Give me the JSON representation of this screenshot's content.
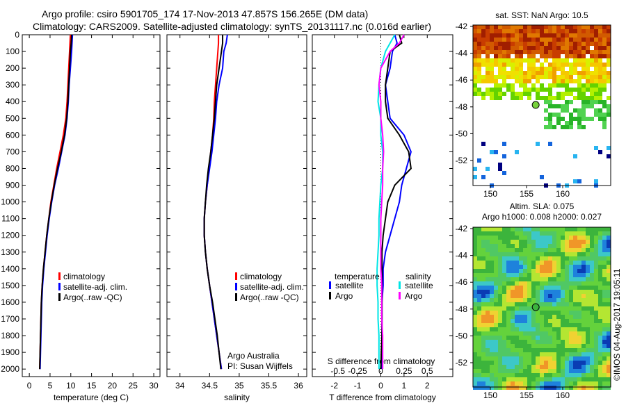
{
  "title": {
    "line1": "Argo profile: csiro 5901705_174 17-Nov-2013 47.857S 156.265E (DM data)",
    "line2": "Climatology: CARS2009. Satellite-adjusted climatology: synTS_20131117.nc (0.016d earlier)"
  },
  "chart_data": [
    {
      "type": "line",
      "xlabel": "temperature (deg C)",
      "xticks": [
        0,
        5,
        10,
        15,
        20,
        25,
        30
      ],
      "xlim": [
        -1.7,
        31.5
      ],
      "ylim": [
        2045,
        0
      ],
      "yticks": [
        0,
        100,
        200,
        300,
        400,
        500,
        600,
        700,
        800,
        900,
        1000,
        1100,
        1200,
        1300,
        1400,
        1500,
        1600,
        1700,
        1800,
        1900,
        2000
      ],
      "legend": [
        "climatology",
        "satellite-adj. clim.",
        "Argo(..raw -QC)"
      ],
      "depth": [
        0,
        50,
        100,
        200,
        300,
        400,
        500,
        600,
        700,
        800,
        900,
        1000,
        1100,
        1200,
        1300,
        1400,
        1500,
        1600,
        1700,
        1800,
        1900,
        2000
      ],
      "series": [
        {
          "name": "climatology",
          "color": "#ff0000",
          "values": [
            9.9,
            9.8,
            9.7,
            9.5,
            9.3,
            9.1,
            8.8,
            8.2,
            7.4,
            6.6,
            5.9,
            5.2,
            4.7,
            4.2,
            3.8,
            3.4,
            3.1,
            2.9,
            2.8,
            2.7,
            2.6,
            2.5
          ]
        },
        {
          "name": "satellite-adj. clim.",
          "color": "#0000ff",
          "values": [
            10.4,
            10.3,
            10.2,
            9.9,
            9.6,
            9.4,
            9.1,
            8.6,
            7.8,
            7.0,
            6.1,
            5.4,
            4.8,
            4.3,
            3.9,
            3.5,
            3.2,
            3.0,
            2.9,
            2.8,
            2.7,
            2.6
          ]
        },
        {
          "name": "Argo(..raw -QC)",
          "color": "#000000",
          "values": [
            10.2,
            10.1,
            9.9,
            9.7,
            9.5,
            9.3,
            9.0,
            8.5,
            7.7,
            6.8,
            6.0,
            5.3,
            4.7,
            4.2,
            3.8,
            3.4,
            3.1,
            2.9,
            2.8,
            2.7,
            2.6,
            2.5
          ]
        }
      ]
    },
    {
      "type": "line",
      "xlabel": "salinity",
      "xticks": [
        34,
        34.5,
        35,
        35.5,
        36
      ],
      "xlim": [
        33.78,
        36.14
      ],
      "ylim": [
        2045,
        0
      ],
      "legend": [
        "climatology",
        "satellite-adj. clim.",
        "Argo(..raw -QC)"
      ],
      "annotation": [
        "Argo Australia",
        "PI: Susan Wijffels"
      ],
      "depth": [
        0,
        50,
        100,
        200,
        300,
        400,
        500,
        600,
        700,
        800,
        900,
        1000,
        1100,
        1200,
        1300,
        1400,
        1500,
        1600,
        1700,
        1800,
        1900,
        2000
      ],
      "series": [
        {
          "name": "climatology",
          "color": "#ff0000",
          "values": [
            34.65,
            34.65,
            34.64,
            34.62,
            34.6,
            34.58,
            34.57,
            34.55,
            34.52,
            34.49,
            34.46,
            34.43,
            34.41,
            34.41,
            34.43,
            34.46,
            34.5,
            34.54,
            34.58,
            34.62,
            34.66,
            34.7
          ]
        },
        {
          "name": "satellite-adj. clim.",
          "color": "#0000ff",
          "values": [
            34.8,
            34.78,
            34.74,
            34.72,
            34.66,
            34.62,
            34.6,
            34.57,
            34.54,
            34.5,
            34.46,
            34.43,
            34.41,
            34.41,
            34.43,
            34.46,
            34.5,
            34.54,
            34.58,
            34.62,
            34.66,
            34.7
          ]
        },
        {
          "name": "Argo(..raw -QC)",
          "color": "#000000",
          "values": [
            34.72,
            34.72,
            34.7,
            34.66,
            34.62,
            34.6,
            34.58,
            34.55,
            34.52,
            34.48,
            34.45,
            34.43,
            34.41,
            34.41,
            34.43,
            34.46,
            34.5,
            34.55,
            34.59,
            34.63,
            34.66,
            34.69
          ]
        }
      ]
    },
    {
      "type": "line",
      "xlabel": "T difference from climatology",
      "xlabel2": "S difference from climatology",
      "xticks": [
        -2,
        -1,
        0,
        1,
        2
      ],
      "xticks2": [
        "-0.5",
        "-0.25",
        "0",
        "0.25",
        "0.5"
      ],
      "xlim": [
        -2.95,
        3.1
      ],
      "ylim": [
        2045,
        0
      ],
      "legend_titles": [
        "temperature",
        "salinity"
      ],
      "legend": [
        "satellite",
        "Argo",
        "satellite",
        "Argo"
      ],
      "depth": [
        0,
        50,
        100,
        200,
        300,
        400,
        500,
        600,
        700,
        800,
        900,
        1000,
        1100,
        1200,
        1300,
        1400,
        1500,
        1600,
        1700,
        1800,
        1900,
        2000
      ],
      "series": [
        {
          "name": "T satellite",
          "color": "#0000ff",
          "values": [
            0.6,
            0.7,
            0.5,
            0.4,
            0.2,
            0.3,
            0.4,
            1.0,
            1.3,
            1.1,
            0.9,
            0.8,
            0.6,
            0.4,
            0.2,
            0.1,
            0.1,
            0.05,
            0.05,
            0.05,
            0.05,
            0.05
          ]
        },
        {
          "name": "T Argo",
          "color": "#000000",
          "values": [
            0.8,
            0.9,
            0.4,
            0.3,
            0.2,
            0.2,
            0.3,
            0.8,
            1.2,
            1.3,
            0.6,
            0.3,
            0.2,
            0.1,
            0.05,
            0.05,
            0.05,
            0.05,
            0.05,
            0.05,
            0.02,
            0
          ]
        },
        {
          "name": "S satellite",
          "color": "#00e5e5",
          "values": [
            0.15,
            0.1,
            0.05,
            0.0,
            -0.02,
            -0.03,
            0.0,
            0.0,
            0.02,
            0.02,
            0.0,
            -0.01,
            -0.02,
            -0.02,
            -0.03,
            -0.04,
            -0.04,
            -0.03,
            -0.03,
            -0.02,
            -0.02,
            -0.02
          ]
        },
        {
          "name": "S Argo",
          "color": "#ff00ff",
          "values": [
            0.25,
            0.2,
            0.1,
            0.0,
            -0.02,
            0.0,
            0.0,
            0.02,
            0.03,
            0.02,
            0.02,
            0.01,
            0.0,
            0.0,
            0.0,
            0.0,
            0.01,
            0.01,
            0.01,
            0.02,
            0.02,
            0.02
          ]
        }
      ]
    }
  ],
  "maps": [
    {
      "title": "sat. SST: NaN Argo: 10.5",
      "lat_ticks": [
        "-42",
        "-44",
        "-46",
        "-48",
        "-50",
        "-52"
      ],
      "lon_ticks": [
        "150",
        "155",
        "160"
      ]
    },
    {
      "title1": "Altim. SLA: 0.075",
      "title2": "Argo h1000: 0.008 h2000: 0.027",
      "lat_ticks": [
        "-42",
        "-44",
        "-46",
        "-48",
        "-50",
        "-52"
      ],
      "lon_ticks": [
        "150",
        "155",
        "160"
      ]
    }
  ],
  "credit": "©IMOS 04-Aug-2017 19:05:11"
}
